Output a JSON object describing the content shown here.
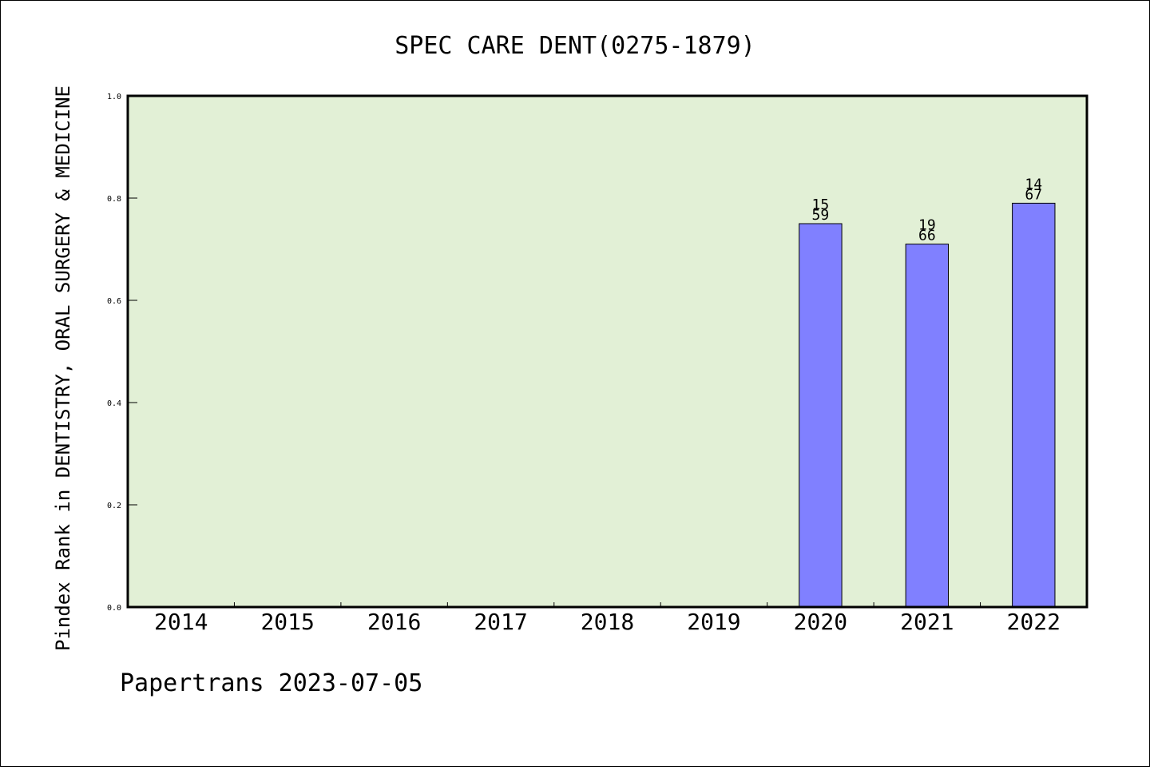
{
  "chart_data": {
    "type": "bar",
    "title": "SPEC CARE DENT(0275-1879)",
    "ylabel": "Pindex Rank in DENTISTRY, ORAL SURGERY & MEDICINE",
    "xlabel": "",
    "categories": [
      "2014",
      "2015",
      "2016",
      "2017",
      "2018",
      "2019",
      "2020",
      "2021",
      "2022"
    ],
    "values": [
      null,
      null,
      null,
      null,
      null,
      null,
      0.75,
      0.71,
      0.79
    ],
    "bar_labels": [
      null,
      null,
      null,
      null,
      null,
      null,
      {
        "top": "15",
        "bottom": "59"
      },
      {
        "top": "19",
        "bottom": "66"
      },
      {
        "top": "14",
        "bottom": "67"
      }
    ],
    "ylim": [
      0,
      1.0
    ],
    "yticks": [
      "0.0",
      "0.2",
      "0.4",
      "0.6",
      "0.8",
      "1.0"
    ],
    "grid": false,
    "colors": {
      "plot_background": "#e2f0d6",
      "bar_fill": "#8080ff",
      "bar_edge": "#000000"
    }
  },
  "footer": "Papertrans 2023-07-05"
}
